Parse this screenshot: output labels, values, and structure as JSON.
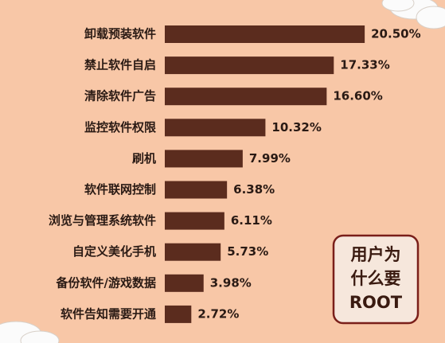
{
  "chart_data": {
    "type": "bar",
    "orientation": "horizontal",
    "title": [
      "用户为",
      "什么要",
      "ROOT"
    ],
    "categories": [
      "卸载预装软件",
      "禁止软件自启",
      "清除软件广告",
      "监控软件权限",
      "刷机",
      "软件联网控制",
      "浏览与管理系统软件",
      "自定义美化手机",
      "备份软件/游戏数据",
      "软件告知需要开通"
    ],
    "values": [
      20.5,
      17.33,
      16.6,
      10.32,
      7.99,
      6.38,
      6.11,
      5.73,
      3.98,
      2.72
    ],
    "value_labels": [
      "20.50%",
      "17.33%",
      "16.60%",
      "10.32%",
      "7.99%",
      "6.38%",
      "6.11%",
      "5.73%",
      "3.98%",
      "2.72%"
    ],
    "color": "#5b2c1e"
  }
}
